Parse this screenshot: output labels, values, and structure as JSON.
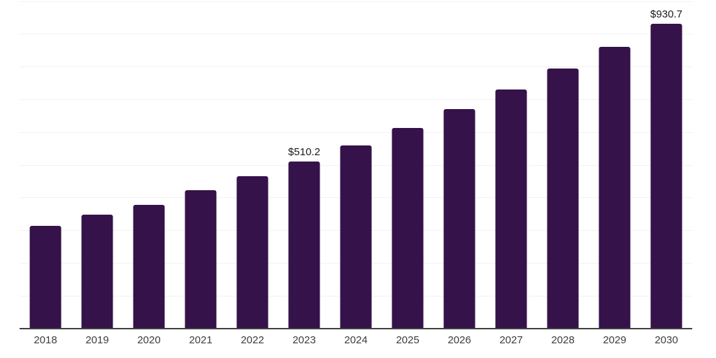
{
  "chart_data": {
    "type": "bar",
    "title": "",
    "xlabel": "",
    "ylabel": "",
    "categories": [
      "2018",
      "2019",
      "2020",
      "2021",
      "2022",
      "2023",
      "2024",
      "2025",
      "2026",
      "2027",
      "2028",
      "2029",
      "2030"
    ],
    "values": [
      314,
      349,
      379,
      423,
      466,
      510.2,
      560,
      613,
      671,
      731,
      795,
      861,
      930.7
    ],
    "value_labels": [
      "",
      "",
      "",
      "",
      "",
      "$510.2",
      "",
      "",
      "",
      "",
      "",
      "",
      "$930.7"
    ],
    "ylim": [
      0,
      1000
    ],
    "gridline_step": 100,
    "grid": true,
    "legend_position": "none",
    "colors": {
      "bar": "#351249",
      "gridline": "#f2f2f2",
      "axis_line": "#404040",
      "tick_label": "#3d3d3d",
      "value_label": "#1a1a1a",
      "background": "#ffffff"
    }
  }
}
